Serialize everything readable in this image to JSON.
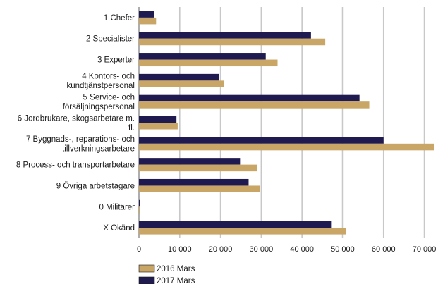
{
  "chart_data": {
    "type": "bar",
    "orientation": "horizontal",
    "categories": [
      [
        "1 Chefer"
      ],
      [
        "2 Specialister"
      ],
      [
        "3 Experter"
      ],
      [
        "4 Kontors- och",
        "kundtjänstpersonal"
      ],
      [
        "5 Service- och",
        "försäljningspersonal"
      ],
      [
        "6 Jordbrukare, skogsarbetare m.",
        "fl."
      ],
      [
        "7 Byggnads-, reparations- och",
        "tillverkningsarbetare"
      ],
      [
        "8 Process- och transportarbetare"
      ],
      [
        "9 Övriga arbetstagare"
      ],
      [
        "0 Militärer"
      ],
      [
        "X Okänd"
      ]
    ],
    "series": [
      {
        "name": "2017 Mars",
        "color": "#1f1a4f",
        "values": [
          3800,
          42200,
          31100,
          19600,
          54100,
          9200,
          60000,
          24800,
          26900,
          300,
          47300
        ]
      },
      {
        "name": "2016 Mars",
        "color": "#c9a566",
        "values": [
          4200,
          45700,
          34000,
          20800,
          56500,
          9500,
          72500,
          29000,
          29700,
          300,
          50800
        ]
      }
    ],
    "xlim": [
      0,
      72500
    ],
    "xticks": [
      0,
      10000,
      20000,
      30000,
      40000,
      50000,
      60000,
      70000
    ],
    "xtick_labels": [
      "0",
      "10 000",
      "20 000",
      "30 000",
      "40 000",
      "50 000",
      "60 000",
      "70 000"
    ],
    "legend": [
      {
        "name": "2016 Mars",
        "color": "#c9a566"
      },
      {
        "name": "2017 Mars",
        "color": "#1f1a4f"
      }
    ],
    "legend_position": "bottom-left",
    "grid": true,
    "title": "",
    "xlabel": "",
    "ylabel": ""
  }
}
